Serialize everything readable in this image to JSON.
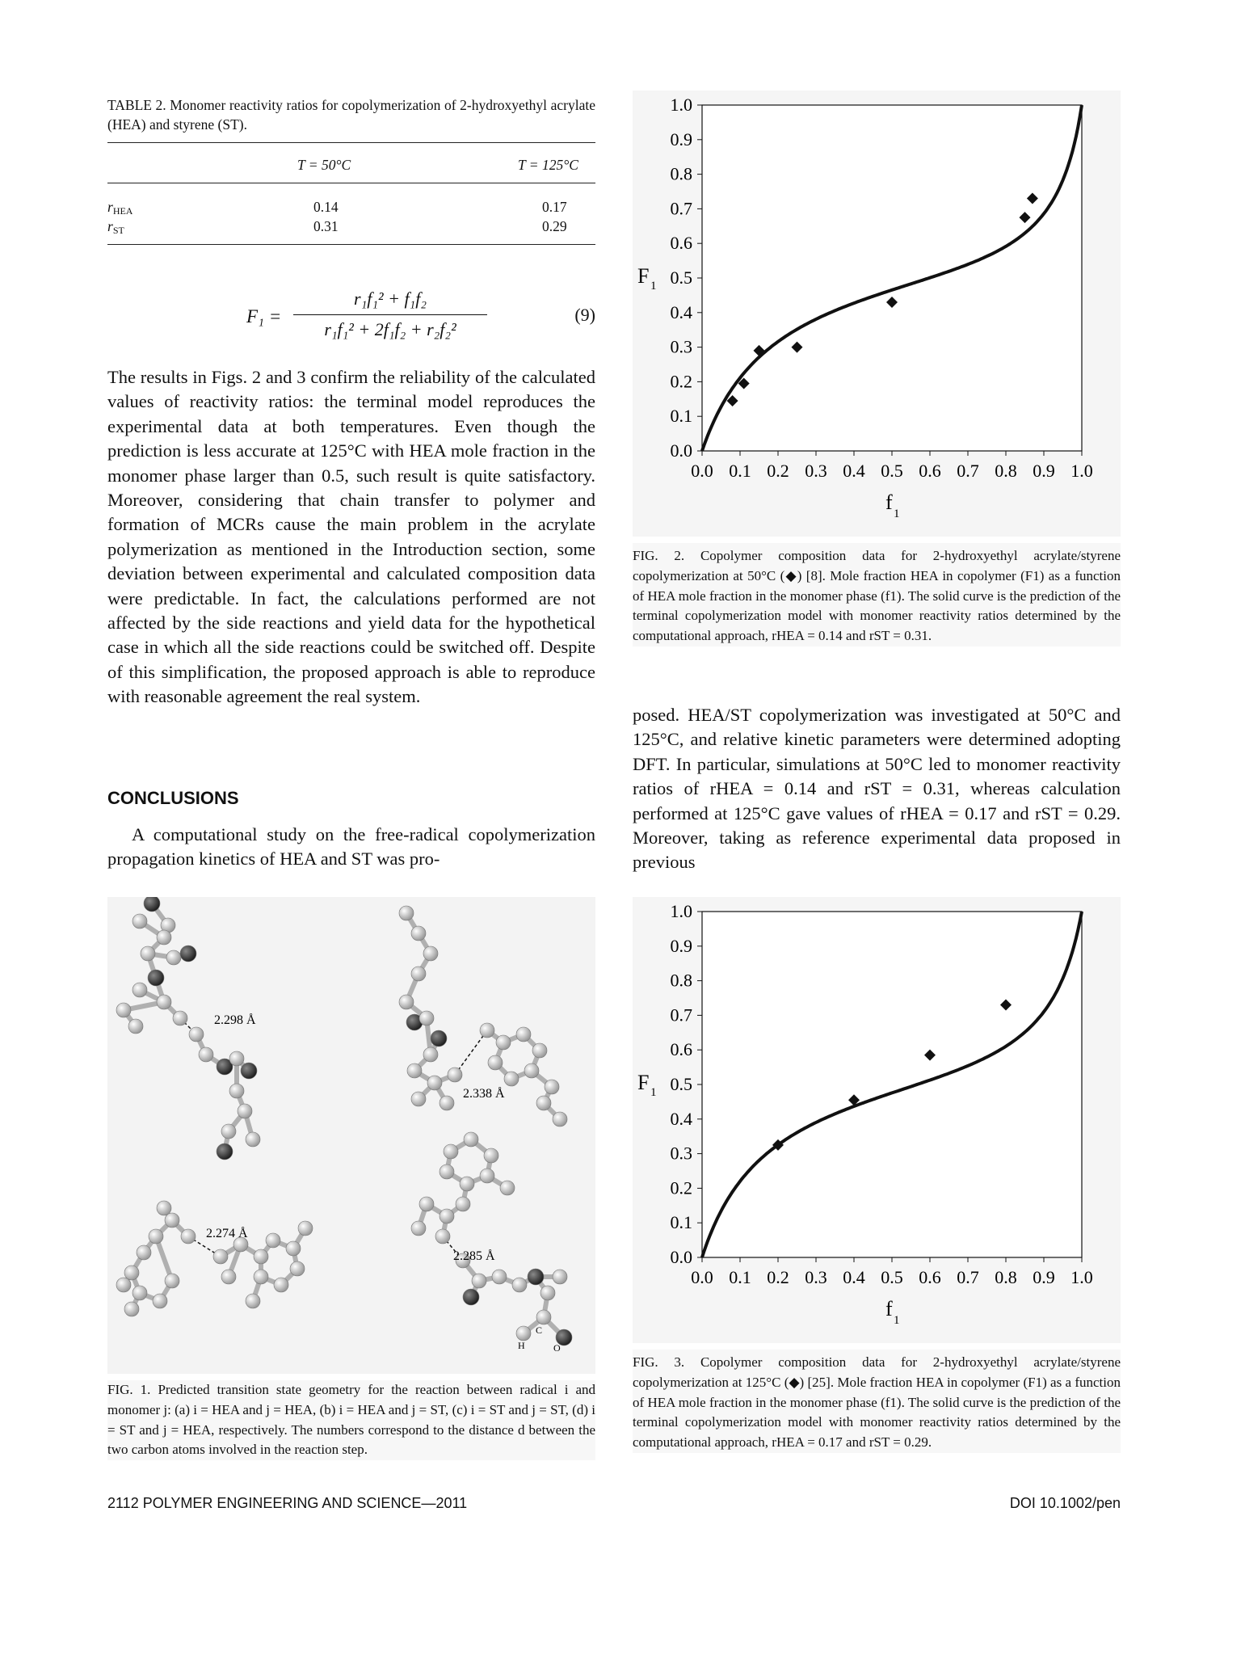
{
  "table2": {
    "caption": "TABLE 2. Monomer reactivity ratios for copolymerization of 2-hydroxyethyl acrylate (HEA) and styrene (ST).",
    "col1": "T = 50°C",
    "col2": "T = 125°C",
    "rows": [
      {
        "label": "r",
        "sub": "HEA",
        "v1": "0.14",
        "v2": "0.17"
      },
      {
        "label": "r",
        "sub": "ST",
        "v1": "0.31",
        "v2": "0.29"
      }
    ]
  },
  "equation": {
    "lhs": "F₁ =",
    "numerator": "r₁f₁² + f₁f₂",
    "denominator": "r₁f₁² + 2f₁f₂ + r₂f₂²",
    "number": "(9)"
  },
  "left_paragraph": "The results in Figs. 2 and 3 confirm the reliability of the calculated values of reactivity ratios: the terminal model reproduces the experimental data at both temperatures. Even though the prediction is less accurate at 125°C with HEA mole fraction in the monomer phase larger than 0.5, such result is quite satisfactory. Moreover, considering that chain transfer to polymer and formation of MCRs cause the main problem in the acrylate polymerization as mentioned in the Introduction section, some deviation between experimental and calculated composition data were predictable. In fact, the calculations performed are not affected by the side reactions and yield data for the hypothetical case in which all the side reactions could be switched off. Despite of this simplification, the proposed approach is able to reproduce with reasonable agreement the real system.",
  "conclusions_heading": "CONCLUSIONS",
  "conclusions_paragraph": "A computational study on the free-radical copolymerization propagation kinetics of HEA and ST was pro-",
  "right_paragraph": "posed. HEA/ST copolymerization was investigated at 50°C and 125°C, and relative kinetic parameters were determined adopting DFT. In particular, simulations at 50°C led to monomer reactivity ratios of rHEA = 0.14 and rST = 0.31, whereas calculation performed at 125°C gave values of rHEA = 0.17 and rST = 0.29. Moreover, taking as reference experimental data proposed in previous",
  "fig1": {
    "labels": [
      "2.298 Å",
      "2.338 Å",
      "2.274 Å",
      "2.285 Å"
    ],
    "atom_labels": [
      "H",
      "C",
      "O"
    ],
    "caption": "FIG. 1. Predicted transition state geometry for the reaction between radical i and monomer j: (a) i = HEA and j = HEA, (b) i = HEA and j = ST, (c) i = ST and j = ST, (d) i = ST and j = HEA, respectively. The numbers correspond to the distance d between the two carbon atoms involved in the reaction step."
  },
  "fig2_caption": "FIG. 2. Copolymer composition data for 2-hydroxyethyl acrylate/styrene copolymerization at 50°C (◆) [8]. Mole fraction HEA in copolymer (F1) as a function of HEA mole fraction in the monomer phase (f1). The solid curve is the prediction of the terminal copolymerization model with monomer reactivity ratios determined by the computational approach, rHEA = 0.14 and rST = 0.31.",
  "fig3_caption": "FIG. 3. Copolymer composition data for 2-hydroxyethyl acrylate/styrene copolymerization at 125°C (◆) [25]. Mole fraction HEA in copolymer (F1) as a function of HEA mole fraction in the monomer phase (f1). The solid curve is the prediction of the terminal copolymerization model with monomer reactivity ratios determined by the computational approach, rHEA = 0.17 and rST = 0.29.",
  "chart_data": [
    {
      "type": "scatter",
      "title": "",
      "xlabel": "f1",
      "ylabel": "F1",
      "xlim": [
        0,
        1
      ],
      "ylim": [
        0,
        1
      ],
      "ticks": [
        "0.0",
        "0.1",
        "0.2",
        "0.3",
        "0.4",
        "0.5",
        "0.6",
        "0.7",
        "0.8",
        "0.9",
        "1.0"
      ],
      "r1": 0.14,
      "r2": 0.31,
      "points": [
        [
          0.08,
          0.145
        ],
        [
          0.11,
          0.195
        ],
        [
          0.15,
          0.29
        ],
        [
          0.25,
          0.3
        ],
        [
          0.5,
          0.43
        ],
        [
          0.85,
          0.675
        ],
        [
          0.87,
          0.73
        ]
      ],
      "grid": false
    },
    {
      "type": "scatter",
      "title": "",
      "xlabel": "f1",
      "ylabel": "F1",
      "xlim": [
        0,
        1
      ],
      "ylim": [
        0,
        1
      ],
      "ticks": [
        "0.0",
        "0.1",
        "0.2",
        "0.3",
        "0.4",
        "0.5",
        "0.6",
        "0.7",
        "0.8",
        "0.9",
        "1.0"
      ],
      "r1": 0.17,
      "r2": 0.29,
      "points": [
        [
          0.2,
          0.325
        ],
        [
          0.4,
          0.455
        ],
        [
          0.6,
          0.585
        ],
        [
          0.8,
          0.73
        ]
      ],
      "grid": false
    }
  ],
  "footer": {
    "left": "2112 POLYMER ENGINEERING AND SCIENCE—2011",
    "right": "DOI 10.1002/pen"
  }
}
